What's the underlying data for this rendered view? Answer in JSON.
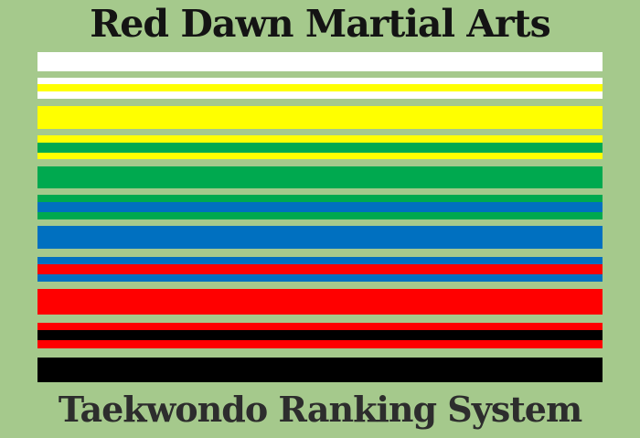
{
  "poster": {
    "title": "Red Dawn Martial Arts",
    "caption": "Taekwondo Ranking System",
    "background_color": "#a5c98c",
    "title_color": "#141414",
    "caption_color": "#2d2d2d"
  },
  "belt_colors": {
    "white": "#ffffff",
    "yellow": "#ffff00",
    "green": "#00a94f",
    "blue": "#0070c0",
    "red": "#ff0000",
    "black": "#000000"
  },
  "belts": {
    "rows": [
      {
        "name": "white-belt",
        "gap": 7,
        "segments": [
          {
            "color": "#ffffff",
            "h": 21
          }
        ]
      },
      {
        "name": "white-belt-yellow-stripe",
        "gap": 8,
        "segments": [
          {
            "color": "#ffffff",
            "h": 7
          },
          {
            "color": "#ffff00",
            "h": 8
          },
          {
            "color": "#ffffff",
            "h": 8
          }
        ]
      },
      {
        "name": "yellow-belt",
        "gap": 7,
        "segments": [
          {
            "color": "#ffff00",
            "h": 25
          }
        ]
      },
      {
        "name": "yellow-belt-green-stripe",
        "gap": 8,
        "segments": [
          {
            "color": "#ffff00",
            "h": 8
          },
          {
            "color": "#00a94f",
            "h": 11
          },
          {
            "color": "#ffff00",
            "h": 7
          }
        ]
      },
      {
        "name": "green-belt",
        "gap": 7,
        "segments": [
          {
            "color": "#00a94f",
            "h": 24
          }
        ]
      },
      {
        "name": "green-belt-blue-stripe",
        "gap": 7,
        "segments": [
          {
            "color": "#00a94f",
            "h": 8
          },
          {
            "color": "#0070c0",
            "h": 11
          },
          {
            "color": "#00a94f",
            "h": 8
          }
        ]
      },
      {
        "name": "blue-belt",
        "gap": 9,
        "segments": [
          {
            "color": "#0070c0",
            "h": 25
          }
        ]
      },
      {
        "name": "blue-belt-red-stripe",
        "gap": 8,
        "segments": [
          {
            "color": "#0070c0",
            "h": 8
          },
          {
            "color": "#ff0000",
            "h": 11
          },
          {
            "color": "#0070c0",
            "h": 8
          }
        ]
      },
      {
        "name": "red-belt",
        "gap": 9,
        "segments": [
          {
            "color": "#ff0000",
            "h": 28
          }
        ]
      },
      {
        "name": "red-belt-black-stripe",
        "gap": 10,
        "segments": [
          {
            "color": "#ff0000",
            "h": 8
          },
          {
            "color": "#000000",
            "h": 11
          },
          {
            "color": "#ff0000",
            "h": 9
          }
        ]
      },
      {
        "name": "black-belt",
        "gap": 0,
        "segments": [
          {
            "color": "#000000",
            "h": 27
          }
        ]
      }
    ]
  }
}
